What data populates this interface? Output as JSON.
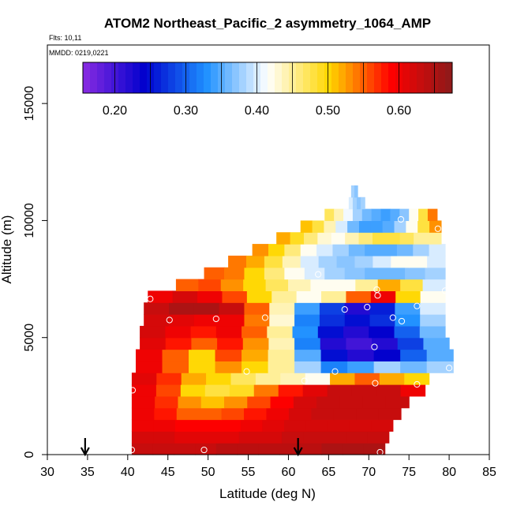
{
  "chart_data": {
    "type": "heatmap",
    "title": "ATOM2 Northeast_Pacific_2 asymmetry_1064_AMP",
    "annotations": [
      "Flts: 10,11",
      "MMDD: 0219,0221"
    ],
    "xlabel": "Latitude (deg N)",
    "ylabel": "Altitude (m)",
    "xlim": [
      30,
      85
    ],
    "ylim": [
      0,
      17500
    ],
    "xticks": [
      30,
      35,
      40,
      45,
      50,
      55,
      60,
      65,
      70,
      75,
      80,
      85
    ],
    "yticks": [
      0,
      5000,
      10000,
      15000
    ],
    "colorbar": {
      "range": [
        0.155,
        0.675
      ],
      "ticks": [
        0.2,
        0.3,
        0.4,
        0.5,
        0.6
      ],
      "tick_labels": [
        "0.20",
        "0.30",
        "0.40",
        "0.50",
        "0.60"
      ],
      "colors": [
        "#8a2be2",
        "#0000cd",
        "#1e90ff",
        "#ffffff",
        "#ffd700",
        "#ff0000",
        "#8b1a1a"
      ]
    },
    "arrows_latitude": [
      34.7,
      61.2
    ],
    "grid": false,
    "altitude_band_m": 500,
    "rows": [
      {
        "alt": 0,
        "lat_min": 40.5,
        "lat_max": 72.0,
        "values": [
          0.63,
          0.63,
          0.63,
          0.63,
          0.64,
          0.64,
          0.64,
          0.64,
          0.64,
          0.65,
          0.65,
          0.65
        ]
      },
      {
        "alt": 500,
        "lat_min": 40.5,
        "lat_max": 72.5,
        "values": [
          0.62,
          0.62,
          0.61,
          0.61,
          0.61,
          0.62,
          0.62,
          0.63,
          0.63,
          0.63,
          0.63,
          0.63
        ]
      },
      {
        "alt": 1000,
        "lat_min": 40.5,
        "lat_max": 73.0,
        "values": [
          0.6,
          0.6,
          0.59,
          0.59,
          0.59,
          0.6,
          0.61,
          0.62,
          0.62,
          0.62,
          0.62,
          0.62
        ]
      },
      {
        "alt": 1500,
        "lat_min": 40.5,
        "lat_max": 74.0,
        "values": [
          0.6,
          0.58,
          0.55,
          0.55,
          0.56,
          0.58,
          0.6,
          0.62,
          0.63,
          0.63,
          0.63,
          0.63
        ]
      },
      {
        "alt": 2000,
        "lat_min": 40.5,
        "lat_max": 75.0,
        "values": [
          0.6,
          0.57,
          0.53,
          0.51,
          0.53,
          0.56,
          0.59,
          0.62,
          0.63,
          0.63,
          0.63,
          0.63
        ]
      },
      {
        "alt": 2500,
        "lat_min": 40.5,
        "lat_max": 77.0,
        "values": [
          0.6,
          0.56,
          0.5,
          0.48,
          0.49,
          0.54,
          0.58,
          0.61,
          0.63,
          0.63,
          0.63,
          0.6
        ]
      },
      {
        "alt": 3000,
        "lat_min": 40.5,
        "lat_max": 77.5,
        "values": [
          0.61,
          0.57,
          0.52,
          0.5,
          0.47,
          0.45,
          0.44,
          0.42,
          0.52,
          0.55,
          0.52,
          0.5
        ]
      },
      {
        "alt": 3500,
        "lat_min": 41.0,
        "lat_max": 80.5,
        "values": [
          0.6,
          0.55,
          0.5,
          0.53,
          0.5,
          0.45,
          0.38,
          0.32,
          0.34,
          0.38,
          0.36,
          0.38
        ]
      },
      {
        "alt": 4000,
        "lat_min": 41.0,
        "lat_max": 80.5,
        "values": [
          0.6,
          0.55,
          0.5,
          0.56,
          0.52,
          0.45,
          0.35,
          0.25,
          0.22,
          0.24,
          0.3,
          0.35
        ]
      },
      {
        "alt": 4500,
        "lat_min": 41.5,
        "lat_max": 80.0,
        "values": [
          0.61,
          0.58,
          0.55,
          0.58,
          0.53,
          0.44,
          0.32,
          0.22,
          0.2,
          0.22,
          0.28,
          0.35
        ]
      },
      {
        "alt": 5000,
        "lat_min": 41.5,
        "lat_max": 79.5,
        "values": [
          0.62,
          0.6,
          0.58,
          0.6,
          0.55,
          0.45,
          0.33,
          0.25,
          0.22,
          0.24,
          0.3,
          0.36
        ]
      },
      {
        "alt": 5500,
        "lat_min": 42.0,
        "lat_max": 79.5,
        "values": [
          0.62,
          0.61,
          0.6,
          0.6,
          0.54,
          0.43,
          0.32,
          0.27,
          0.25,
          0.27,
          0.33,
          0.38
        ]
      },
      {
        "alt": 6000,
        "lat_min": 42.0,
        "lat_max": 79.5,
        "values": [
          0.63,
          0.65,
          0.65,
          0.63,
          0.55,
          0.44,
          0.34,
          0.28,
          0.22,
          0.26,
          0.34,
          0.4
        ]
      },
      {
        "alt": 6500,
        "lat_min": 42.5,
        "lat_max": 79.5,
        "values": [
          0.6,
          0.62,
          0.6,
          0.56,
          0.5,
          0.45,
          0.42,
          0.45,
          0.55,
          0.6,
          0.5,
          0.42
        ]
      },
      {
        "alt": 7000,
        "lat_min": 46.0,
        "lat_max": 79.5,
        "values": [
          0.55,
          0.56,
          0.53,
          0.5,
          0.47,
          0.44,
          0.42,
          0.42,
          0.45,
          0.52,
          0.48,
          0.4
        ]
      },
      {
        "alt": 7500,
        "lat_min": 49.5,
        "lat_max": 79.5,
        "values": [
          0.55,
          0.54,
          0.5,
          0.46,
          0.42,
          0.4,
          0.38,
          0.37,
          0.36,
          0.36,
          0.37,
          0.38
        ]
      },
      {
        "alt": 8000,
        "lat_min": 52.5,
        "lat_max": 79.5,
        "values": [
          0.54,
          0.52,
          0.48,
          0.44,
          0.4,
          0.38,
          0.37,
          0.38,
          0.4,
          0.42,
          0.42,
          0.4
        ]
      },
      {
        "alt": 8500,
        "lat_min": 55.5,
        "lat_max": 79.5,
        "values": [
          0.53,
          0.5,
          0.46,
          0.42,
          0.4,
          0.38,
          0.36,
          0.35,
          0.35,
          0.36,
          0.38,
          0.4
        ]
      },
      {
        "alt": 9000,
        "lat_min": 58.5,
        "lat_max": 79.0,
        "values": [
          0.52,
          0.49,
          0.46,
          0.43,
          0.42,
          0.44,
          0.46,
          0.48,
          0.48,
          0.47,
          0.45,
          0.45
        ]
      },
      {
        "alt": 9500,
        "lat_min": 61.5,
        "lat_max": 79.0,
        "values": [
          0.51,
          0.48,
          0.44,
          0.4,
          0.36,
          0.34,
          0.34,
          0.35,
          0.38,
          0.42,
          0.48,
          0.53
        ]
      },
      {
        "alt": 10000,
        "lat_min": 64.5,
        "lat_max": 78.5,
        "values": [
          0.47,
          0.44,
          0.41,
          0.38,
          0.36,
          0.35,
          0.34,
          0.35,
          0.37,
          0.42,
          0.48,
          0.54
        ]
      },
      {
        "alt": 10500,
        "lat_min": 67.5,
        "lat_max": 69.5,
        "values": [
          0.4,
          0.38,
          0.37,
          0.38
        ]
      },
      {
        "alt": 11000,
        "lat_min": 67.8,
        "lat_max": 68.6,
        "values": [
          0.38,
          0.37
        ]
      }
    ],
    "sample_points": [
      [
        40.5,
        200
      ],
      [
        49.5,
        200
      ],
      [
        71.4,
        100
      ],
      [
        40.6,
        2750
      ],
      [
        62.0,
        3150
      ],
      [
        70.8,
        3050
      ],
      [
        76.0,
        3000
      ],
      [
        54.8,
        3550
      ],
      [
        65.8,
        3550
      ],
      [
        80.0,
        3700
      ],
      [
        70.7,
        4600
      ],
      [
        45.2,
        5750
      ],
      [
        51.0,
        5800
      ],
      [
        57.1,
        5850
      ],
      [
        73.0,
        5850
      ],
      [
        74.1,
        5700
      ],
      [
        67.0,
        6200
      ],
      [
        69.8,
        6300
      ],
      [
        76.0,
        6350
      ],
      [
        42.8,
        6650
      ],
      [
        71.1,
        6800
      ],
      [
        71.0,
        7050
      ],
      [
        79.5,
        7000
      ],
      [
        63.7,
        7700
      ],
      [
        74.0,
        10050
      ],
      [
        78.6,
        9650
      ]
    ]
  }
}
